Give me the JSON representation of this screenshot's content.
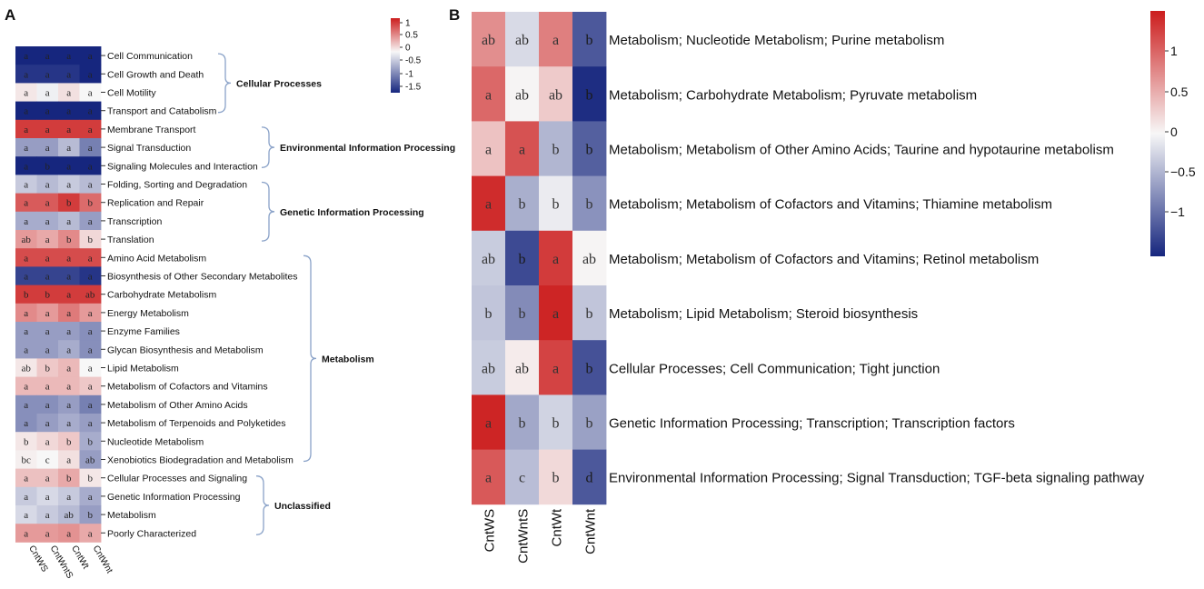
{
  "colors": {
    "neg": "#16267e",
    "mid": "#f7f7f7",
    "pos": "#cc1d1d",
    "bracket": "#8aa2c8",
    "text": "#111111"
  },
  "chart_data": [
    {
      "panel_label": "A",
      "type": "heatmap",
      "columns": [
        "CntWS",
        "CntWntS",
        "CntWt",
        "CntWnt"
      ],
      "color_scale": {
        "ticks": [
          "1",
          "0.5",
          "0",
          "-0.5",
          "-1",
          "-1.5"
        ],
        "min": -1.5,
        "max": 1.2
      },
      "rows": [
        {
          "label": "Cell Communication",
          "values": [
            -1.4,
            -1.4,
            -1.4,
            -1.4
          ],
          "letters": [
            "a",
            "a",
            "a",
            "a"
          ]
        },
        {
          "label": "Cell Growth and Death",
          "values": [
            -1.3,
            -1.3,
            -1.3,
            -1.4
          ],
          "letters": [
            "a",
            "a",
            "a",
            "a"
          ]
        },
        {
          "label": "Cell Motility",
          "values": [
            0.1,
            -0.05,
            0.15,
            0.0
          ],
          "letters": [
            "a",
            "a",
            "a",
            "a"
          ]
        },
        {
          "label": "Transport and Catabolism",
          "values": [
            -1.4,
            -1.4,
            -1.4,
            -1.5
          ],
          "letters": [
            "a",
            "a",
            "a",
            "a"
          ]
        },
        {
          "label": "Membrane Transport",
          "values": [
            1.2,
            1.2,
            1.2,
            1.2
          ],
          "letters": [
            "a",
            "a",
            "a",
            "a"
          ]
        },
        {
          "label": "Signal Transduction",
          "values": [
            -0.6,
            -0.6,
            -0.4,
            -0.8
          ],
          "letters": [
            "a",
            "a",
            "a",
            "a"
          ]
        },
        {
          "label": "Signaling Molecules and Interaction",
          "values": [
            -1.4,
            -1.4,
            -1.4,
            -1.4
          ],
          "letters": [
            "a",
            "b",
            "a",
            "a"
          ]
        },
        {
          "label": "Folding, Sorting and Degradation",
          "values": [
            -0.3,
            -0.4,
            -0.3,
            -0.4
          ],
          "letters": [
            "a",
            "a",
            "a",
            "a"
          ]
        },
        {
          "label": "Replication and Repair",
          "values": [
            1.0,
            1.0,
            1.2,
            0.9
          ],
          "letters": [
            "a",
            "a",
            "b",
            "b"
          ]
        },
        {
          "label": "Transcription",
          "values": [
            -0.5,
            -0.5,
            -0.4,
            -0.6
          ],
          "letters": [
            "a",
            "a",
            "a",
            "a"
          ]
        },
        {
          "label": "Translation",
          "values": [
            0.6,
            0.5,
            0.7,
            0.2
          ],
          "letters": [
            "ab",
            "a",
            "b",
            "b"
          ]
        },
        {
          "label": "Amino Acid Metabolism",
          "values": [
            1.1,
            1.1,
            1.1,
            1.1
          ],
          "letters": [
            "a",
            "a",
            "a",
            "a"
          ]
        },
        {
          "label": "Biosynthesis of Other Secondary Metabolites",
          "values": [
            -1.2,
            -1.2,
            -1.2,
            -1.3
          ],
          "letters": [
            "a",
            "a",
            "a",
            "a"
          ]
        },
        {
          "label": "Carbohydrate Metabolism",
          "values": [
            1.2,
            1.2,
            1.2,
            1.2
          ],
          "letters": [
            "b",
            "b",
            "a",
            "ab"
          ]
        },
        {
          "label": "Energy Metabolism",
          "values": [
            0.7,
            0.6,
            0.8,
            0.6
          ],
          "letters": [
            "a",
            "a",
            "a",
            "a"
          ]
        },
        {
          "label": "Enzyme Families",
          "values": [
            -0.6,
            -0.6,
            -0.6,
            -0.7
          ],
          "letters": [
            "a",
            "a",
            "a",
            "a"
          ]
        },
        {
          "label": "Glycan Biosynthesis and Metabolism",
          "values": [
            -0.6,
            -0.6,
            -0.5,
            -0.7
          ],
          "letters": [
            "a",
            "a",
            "a",
            "a"
          ]
        },
        {
          "label": "Lipid Metabolism",
          "values": [
            0.1,
            0.3,
            0.4,
            0.0
          ],
          "letters": [
            "ab",
            "b",
            "a",
            "a"
          ]
        },
        {
          "label": "Metabolism of Cofactors and Vitamins",
          "values": [
            0.4,
            0.4,
            0.4,
            0.3
          ],
          "letters": [
            "a",
            "a",
            "a",
            "a"
          ]
        },
        {
          "label": "Metabolism of Other Amino Acids",
          "values": [
            -0.7,
            -0.7,
            -0.6,
            -0.8
          ],
          "letters": [
            "a",
            "a",
            "a",
            "a"
          ]
        },
        {
          "label": "Metabolism of Terpenoids and Polyketides",
          "values": [
            -0.7,
            -0.6,
            -0.5,
            -0.6
          ],
          "letters": [
            "a",
            "a",
            "a",
            "a"
          ]
        },
        {
          "label": "Nucleotide Metabolism",
          "values": [
            0.1,
            0.2,
            0.3,
            -0.5
          ],
          "letters": [
            "b",
            "a",
            "b",
            "b"
          ]
        },
        {
          "label": "Xenobiotics Biodegradation and Metabolism",
          "values": [
            0.05,
            0.0,
            0.15,
            -0.6
          ],
          "letters": [
            "bc",
            "c",
            "a",
            "ab"
          ]
        },
        {
          "label": "Cellular Processes and Signaling",
          "values": [
            0.35,
            0.35,
            0.5,
            0.1
          ],
          "letters": [
            "a",
            "a",
            "b",
            "b"
          ]
        },
        {
          "label": "Genetic Information Processing",
          "values": [
            -0.3,
            -0.2,
            -0.3,
            -0.5
          ],
          "letters": [
            "a",
            "a",
            "a",
            "a"
          ]
        },
        {
          "label": "Metabolism",
          "values": [
            -0.2,
            -0.3,
            -0.4,
            -0.6
          ],
          "letters": [
            "a",
            "a",
            "ab",
            "b"
          ]
        },
        {
          "label": "Poorly Characterized",
          "values": [
            0.6,
            0.6,
            0.65,
            0.5
          ],
          "letters": [
            "a",
            "a",
            "a",
            "a"
          ]
        }
      ],
      "groups": [
        {
          "label": "Cellular Processes",
          "first_row": 0,
          "last_row": 3
        },
        {
          "label": "Environmental Information Processing",
          "first_row": 4,
          "last_row": 6
        },
        {
          "label": "Genetic Information Processing",
          "first_row": 7,
          "last_row": 10
        },
        {
          "label": "Metabolism",
          "first_row": 11,
          "last_row": 22
        },
        {
          "label": "Unclassified",
          "first_row": 23,
          "last_row": 26
        }
      ]
    },
    {
      "panel_label": "B",
      "type": "heatmap",
      "columns": [
        "CntWS",
        "CntWntS",
        "CntWt",
        "CntWnt"
      ],
      "color_scale": {
        "ticks": [
          "1",
          "0.5",
          "0",
          "−0.5",
          "−1"
        ],
        "min": -1.5,
        "max": 1.5
      },
      "rows": [
        {
          "label": "Metabolism; Nucleotide Metabolism; Purine metabolism",
          "values": [
            0.7,
            -0.2,
            0.8,
            -1.1
          ],
          "letters": [
            "ab",
            "ab",
            "a",
            "b"
          ]
        },
        {
          "label": "Metabolism; Carbohydrate Metabolism; Pyruvate metabolism",
          "values": [
            0.95,
            0.02,
            0.3,
            -1.4
          ],
          "letters": [
            "a",
            "ab",
            "ab",
            "b"
          ]
        },
        {
          "label": "Metabolism; Metabolism of Other Amino Acids; Taurine and hypotaurine metabolism",
          "values": [
            0.35,
            1.1,
            -0.45,
            -1.05
          ],
          "letters": [
            "a",
            "a",
            "b",
            "b"
          ]
        },
        {
          "label": "Metabolism; Metabolism of Cofactors and Vitamins; Thiamine metabolism",
          "values": [
            1.35,
            -0.5,
            -0.08,
            -0.7
          ],
          "letters": [
            "a",
            "b",
            "b",
            "b"
          ]
        },
        {
          "label": "Metabolism; Metabolism of Cofactors and Vitamins; Retinol metabolism",
          "values": [
            -0.3,
            -1.2,
            1.25,
            0.02
          ],
          "letters": [
            "ab",
            "b",
            "a",
            "ab"
          ]
        },
        {
          "label": "Metabolism; Lipid Metabolism; Steroid biosynthesis",
          "values": [
            -0.35,
            -0.75,
            1.4,
            -0.35
          ],
          "letters": [
            "b",
            "b",
            "a",
            "b"
          ]
        },
        {
          "label": "Cellular Processes; Cell Communication; Tight junction",
          "values": [
            -0.3,
            0.08,
            1.2,
            -1.15
          ],
          "letters": [
            "ab",
            "ab",
            "a",
            "b"
          ]
        },
        {
          "label": "Genetic Information Processing; Transcription; Transcription factors",
          "values": [
            1.4,
            -0.55,
            -0.25,
            -0.6
          ],
          "letters": [
            "a",
            "b",
            "b",
            "b"
          ]
        },
        {
          "label": "Environmental Information Processing; Signal Transduction; TGF‑beta signaling pathway",
          "values": [
            1.05,
            -0.4,
            0.2,
            -1.1
          ],
          "letters": [
            "a",
            "c",
            "b",
            "d"
          ]
        }
      ]
    }
  ]
}
